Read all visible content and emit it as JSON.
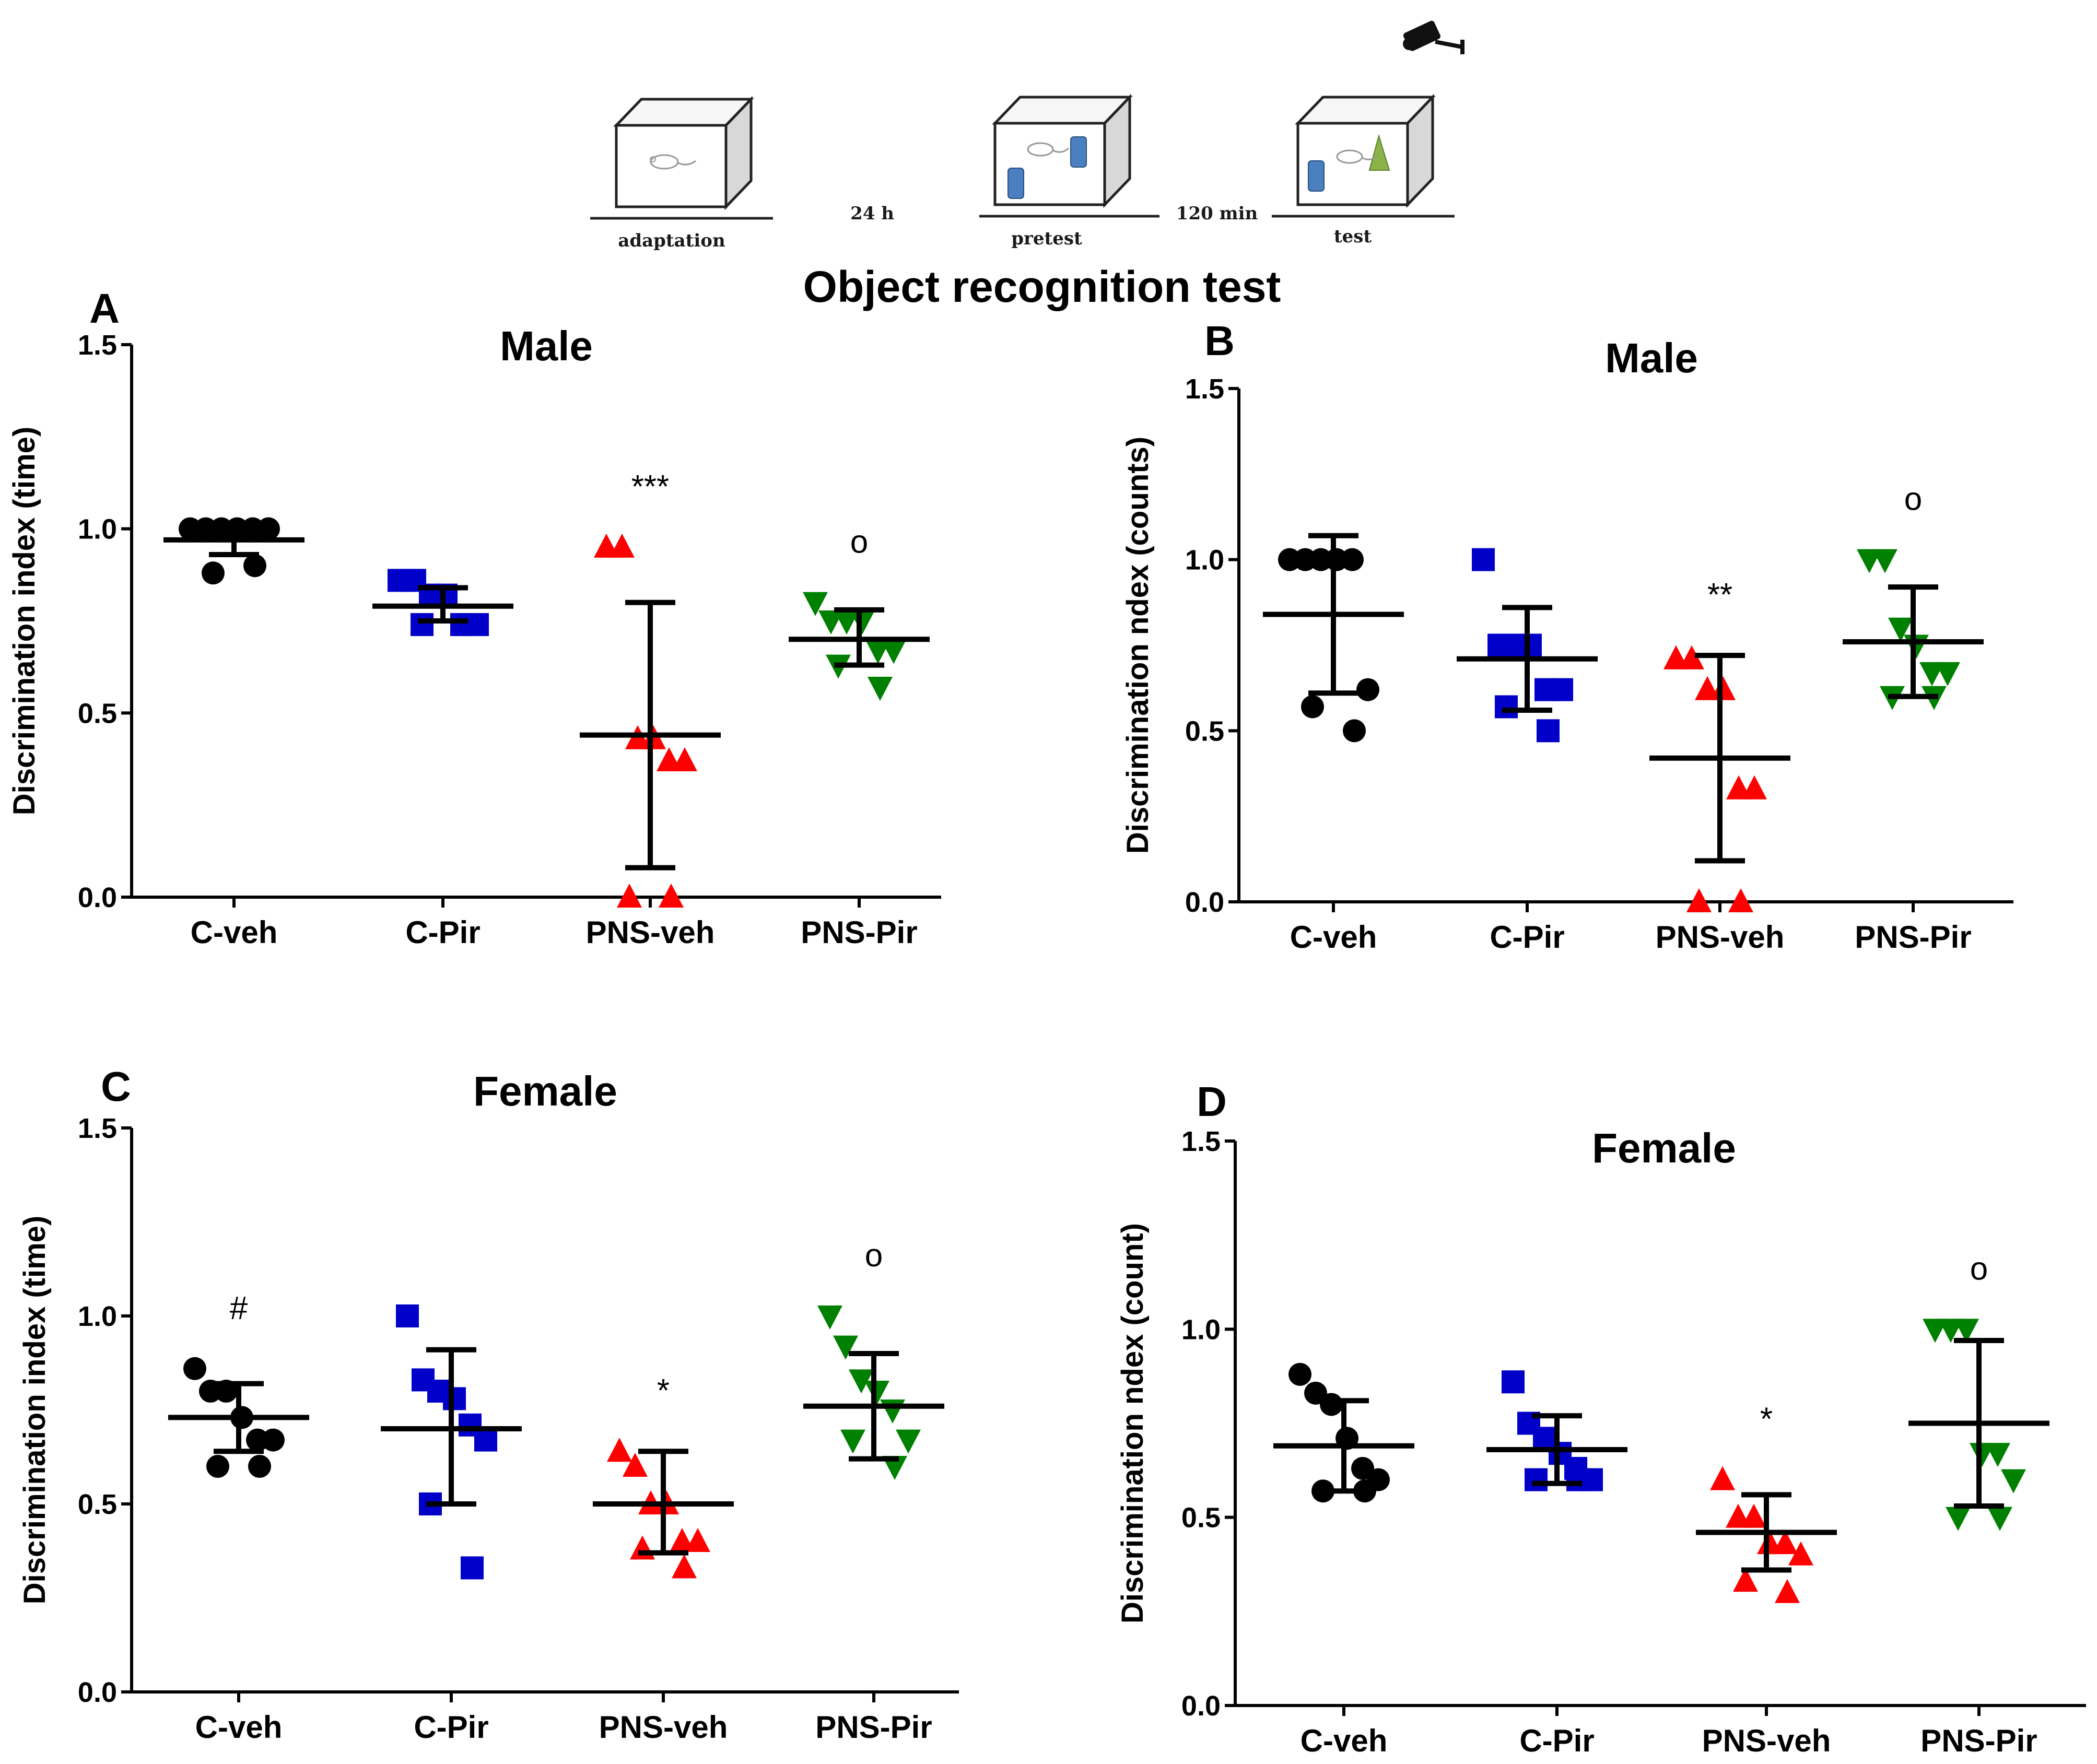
{
  "figure_title": "Object recognition test",
  "schematic": {
    "stages": [
      "adaptation",
      "pretest",
      "test"
    ],
    "intervals": [
      "24 h",
      "120 min"
    ]
  },
  "colors": {
    "C-veh": "#000000",
    "C-Pir": "#0000c8",
    "PNS-veh": "#ff0000",
    "PNS-Pir": "#008000"
  },
  "markers": {
    "C-veh": "circle",
    "C-Pir": "square",
    "PNS-veh": "triangle-up",
    "PNS-Pir": "triangle-down"
  },
  "chart_data": [
    {
      "type": "scatter",
      "panel": "A",
      "title": "Male",
      "ylabel": "Discrimination index (time)",
      "xlabel": "",
      "ylim": [
        0,
        1.5
      ],
      "yticks": [
        "0.0",
        "0.5",
        "1.0",
        "1.5"
      ],
      "categories": [
        "C-veh",
        "C-Pir",
        "PNS-veh",
        "PNS-Pir"
      ],
      "series": [
        {
          "name": "C-veh",
          "points": [
            1.0,
            1.0,
            1.0,
            1.0,
            1.0,
            1.0,
            0.88,
            0.9
          ],
          "mean": 0.97,
          "sd_low": 0.93,
          "sd_high": 1.0
        },
        {
          "name": "C-Pir",
          "points": [
            0.86,
            0.86,
            0.82,
            0.82,
            0.74,
            0.74,
            0.74,
            0.74
          ],
          "mean": 0.79,
          "sd_low": 0.75,
          "sd_high": 0.84
        },
        {
          "name": "PNS-veh",
          "points": [
            0.95,
            0.95,
            0.43,
            0.43,
            0.37,
            0.37,
            0.0,
            0.0
          ],
          "mean": 0.44,
          "sd_low": 0.08,
          "sd_high": 0.8
        },
        {
          "name": "PNS-Pir",
          "points": [
            0.8,
            0.75,
            0.75,
            0.75,
            0.67,
            0.67,
            0.63,
            0.57
          ],
          "mean": 0.7,
          "sd_low": 0.63,
          "sd_high": 0.78
        }
      ],
      "annotations": [
        "",
        "",
        "***",
        "o"
      ]
    },
    {
      "type": "scatter",
      "panel": "B",
      "title": "Male",
      "ylabel": "Discrimination ndex (counts)",
      "xlabel": "",
      "ylim": [
        0,
        1.5
      ],
      "yticks": [
        "0.0",
        "0.5",
        "1.0",
        "1.5"
      ],
      "categories": [
        "C-veh",
        "C-Pir",
        "PNS-veh",
        "PNS-Pir"
      ],
      "series": [
        {
          "name": "C-veh",
          "points": [
            1.0,
            1.0,
            1.0,
            1.0,
            1.0,
            0.62,
            0.57,
            0.5
          ],
          "mean": 0.84,
          "sd_low": 0.61,
          "sd_high": 1.07
        },
        {
          "name": "C-Pir",
          "points": [
            1.0,
            0.75,
            0.75,
            0.75,
            0.62,
            0.62,
            0.57,
            0.5
          ],
          "mean": 0.71,
          "sd_low": 0.56,
          "sd_high": 0.86
        },
        {
          "name": "PNS-veh",
          "points": [
            0.71,
            0.71,
            0.62,
            0.62,
            0.33,
            0.33,
            0.0,
            0.0
          ],
          "mean": 0.42,
          "sd_low": 0.12,
          "sd_high": 0.72
        },
        {
          "name": "PNS-Pir",
          "points": [
            1.0,
            1.0,
            0.8,
            0.75,
            0.67,
            0.67,
            0.6,
            0.6
          ],
          "mean": 0.76,
          "sd_low": 0.6,
          "sd_high": 0.92
        }
      ],
      "annotations": [
        "",
        "",
        "**",
        "o"
      ]
    },
    {
      "type": "scatter",
      "panel": "C",
      "title": "Female",
      "ylabel": "Discrimination index (time)",
      "xlabel": "",
      "ylim": [
        0,
        1.5
      ],
      "yticks": [
        "0.0",
        "0.5",
        "1.0",
        "1.5"
      ],
      "categories": [
        "C-veh",
        "C-Pir",
        "PNS-veh",
        "PNS-Pir"
      ],
      "series": [
        {
          "name": "C-veh",
          "points": [
            0.86,
            0.8,
            0.8,
            0.73,
            0.67,
            0.67,
            0.6,
            0.6
          ],
          "mean": 0.73,
          "sd_low": 0.64,
          "sd_high": 0.82
        },
        {
          "name": "C-Pir",
          "points": [
            1.0,
            0.83,
            0.8,
            0.78,
            0.71,
            0.67,
            0.5,
            0.33
          ],
          "mean": 0.7,
          "sd_low": 0.5,
          "sd_high": 0.91
        },
        {
          "name": "PNS-veh",
          "points": [
            0.64,
            0.6,
            0.5,
            0.5,
            0.4,
            0.4,
            0.38,
            0.33
          ],
          "mean": 0.5,
          "sd_low": 0.37,
          "sd_high": 0.64
        },
        {
          "name": "PNS-Pir",
          "points": [
            1.0,
            0.92,
            0.83,
            0.8,
            0.75,
            0.67,
            0.67,
            0.6
          ],
          "mean": 0.76,
          "sd_low": 0.62,
          "sd_high": 0.9
        }
      ],
      "annotations": [
        "#",
        "",
        "*",
        "o"
      ]
    },
    {
      "type": "scatter",
      "panel": "D",
      "title": "Female",
      "ylabel": "Discrimination ndex (count)",
      "xlabel": "",
      "ylim": [
        0,
        1.5
      ],
      "yticks": [
        "0.0",
        "0.5",
        "1.0",
        "1.5"
      ],
      "categories": [
        "C-veh",
        "C-Pir",
        "PNS-veh",
        "PNS-Pir"
      ],
      "series": [
        {
          "name": "C-veh",
          "points": [
            0.88,
            0.83,
            0.8,
            0.71,
            0.63,
            0.6,
            0.57,
            0.57
          ],
          "mean": 0.69,
          "sd_low": 0.57,
          "sd_high": 0.81
        },
        {
          "name": "C-Pir",
          "points": [
            0.86,
            0.75,
            0.71,
            0.67,
            0.63,
            0.6,
            0.6,
            0.6
          ],
          "mean": 0.68,
          "sd_low": 0.59,
          "sd_high": 0.77
        },
        {
          "name": "PNS-veh",
          "points": [
            0.6,
            0.5,
            0.5,
            0.43,
            0.43,
            0.4,
            0.33,
            0.3
          ],
          "mean": 0.46,
          "sd_low": 0.36,
          "sd_high": 0.56
        },
        {
          "name": "PNS-Pir",
          "points": [
            1.0,
            1.0,
            1.0,
            0.67,
            0.67,
            0.6,
            0.5,
            0.5
          ],
          "mean": 0.75,
          "sd_low": 0.53,
          "sd_high": 0.97
        }
      ],
      "annotations": [
        "",
        "",
        "*",
        "o"
      ]
    }
  ]
}
